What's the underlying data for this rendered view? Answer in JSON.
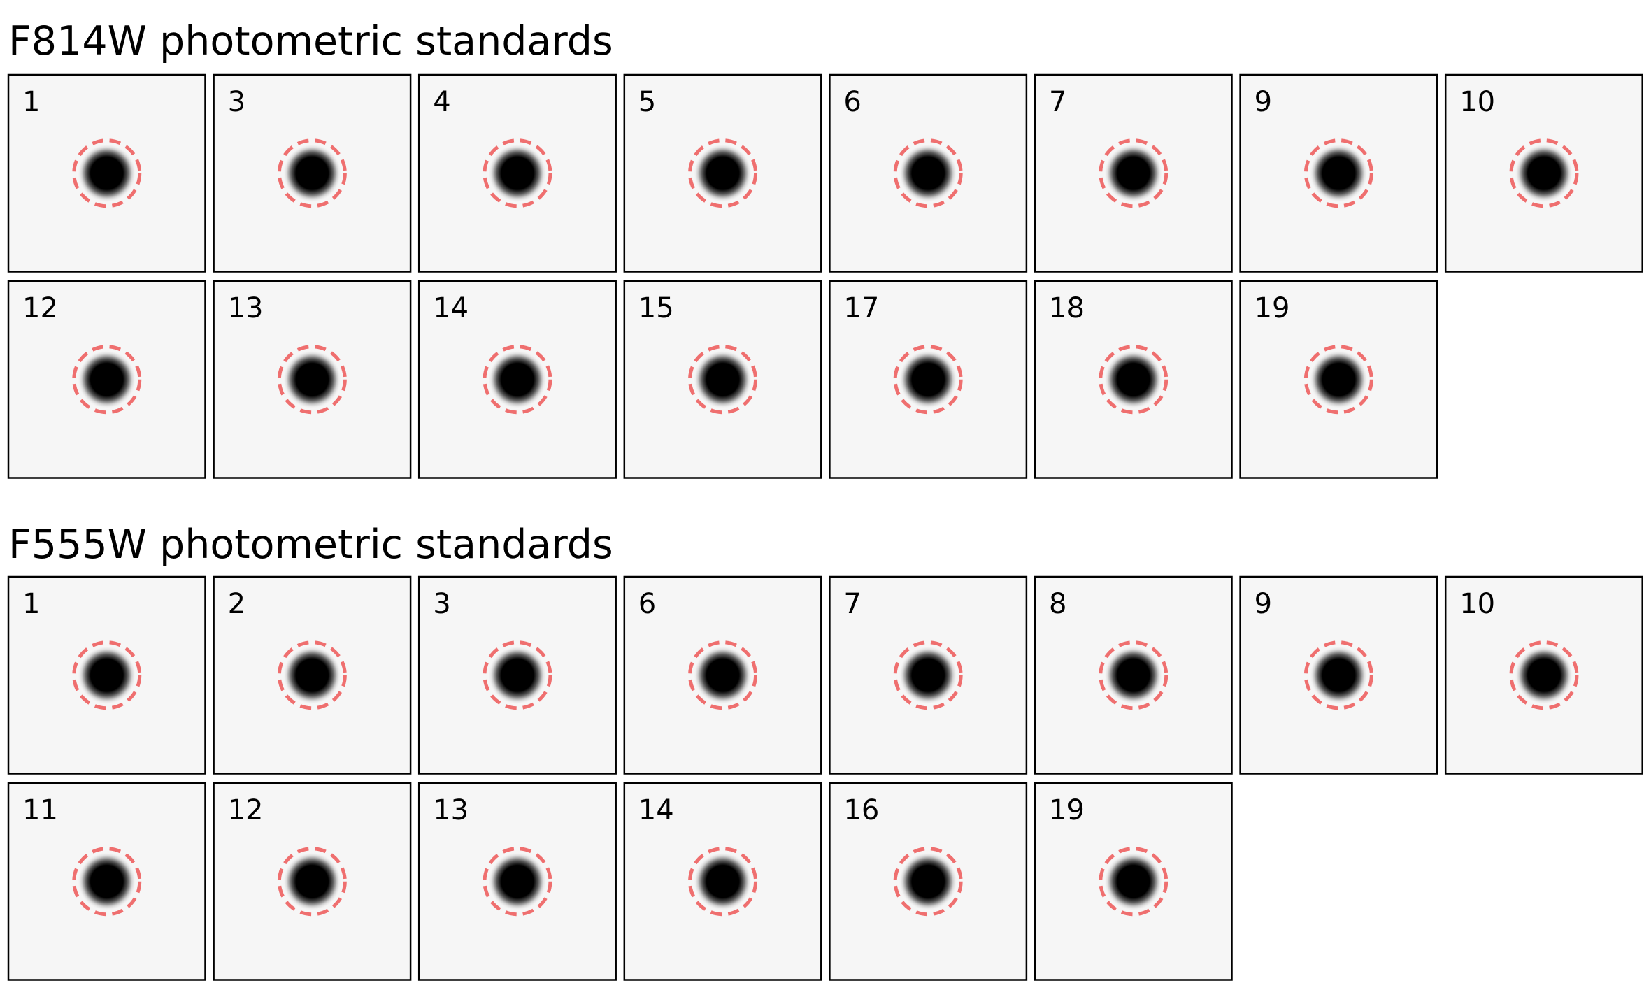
{
  "sections": [
    {
      "title": "F814W photometric standards",
      "panels": [
        "1",
        "3",
        "4",
        "5",
        "6",
        "7",
        "9",
        "10",
        "12",
        "13",
        "14",
        "15",
        "17",
        "18",
        "19"
      ]
    },
    {
      "title": "F555W photometric standards",
      "panels": [
        "1",
        "2",
        "3",
        "6",
        "7",
        "8",
        "9",
        "10",
        "11",
        "12",
        "13",
        "14",
        "16",
        "19"
      ]
    }
  ]
}
